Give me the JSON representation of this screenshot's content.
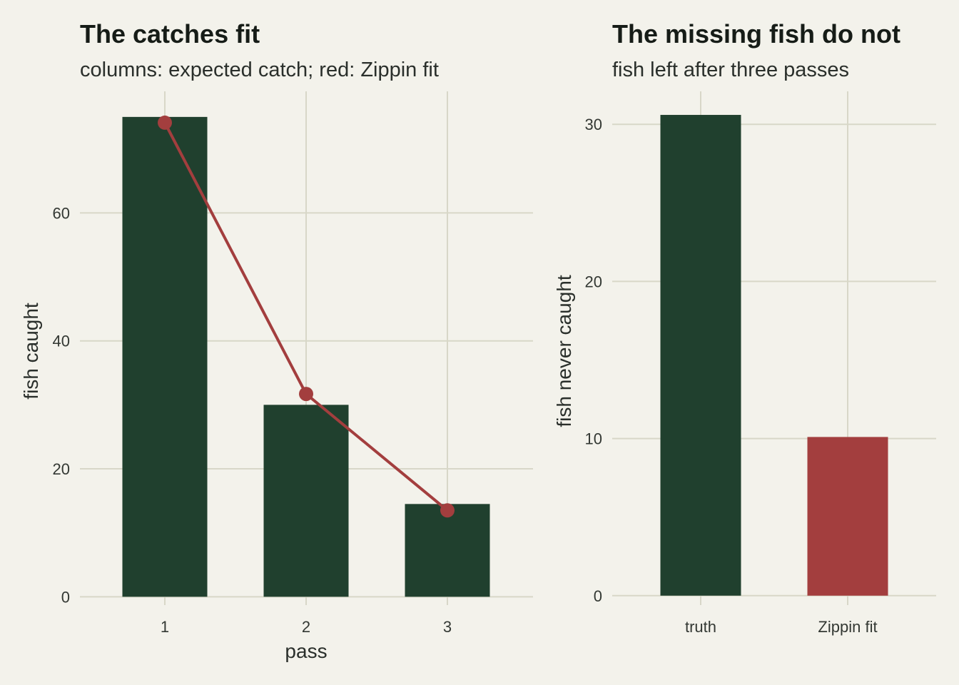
{
  "chart_data": [
    {
      "type": "bar",
      "title": "The catches fit",
      "subtitle": "columns: expected catch; red: Zippin fit",
      "xlabel": "pass",
      "ylabel": "fish caught",
      "categories": [
        "1",
        "2",
        "3"
      ],
      "values": [
        75,
        30,
        14.5
      ],
      "line": {
        "values": [
          74.1,
          31.7,
          13.5
        ]
      },
      "yticks": [
        0,
        20,
        40,
        60
      ],
      "ylim": [
        -1.3,
        79
      ],
      "grid": true,
      "colors": {
        "bar": "#20402e",
        "line": "#a33e3e"
      }
    },
    {
      "type": "bar",
      "title": "The missing fish do not",
      "subtitle": "fish left after three passes",
      "xlabel": "",
      "ylabel": "fish never caught",
      "categories": [
        "truth",
        "Zippin fit"
      ],
      "values": [
        30.6,
        10.1
      ],
      "yticks": [
        0,
        10,
        20,
        30
      ],
      "ylim": [
        -0.6,
        32.1
      ],
      "grid": true,
      "colors": {
        "bars": [
          "#20402e",
          "#a33e3e"
        ]
      }
    }
  ]
}
